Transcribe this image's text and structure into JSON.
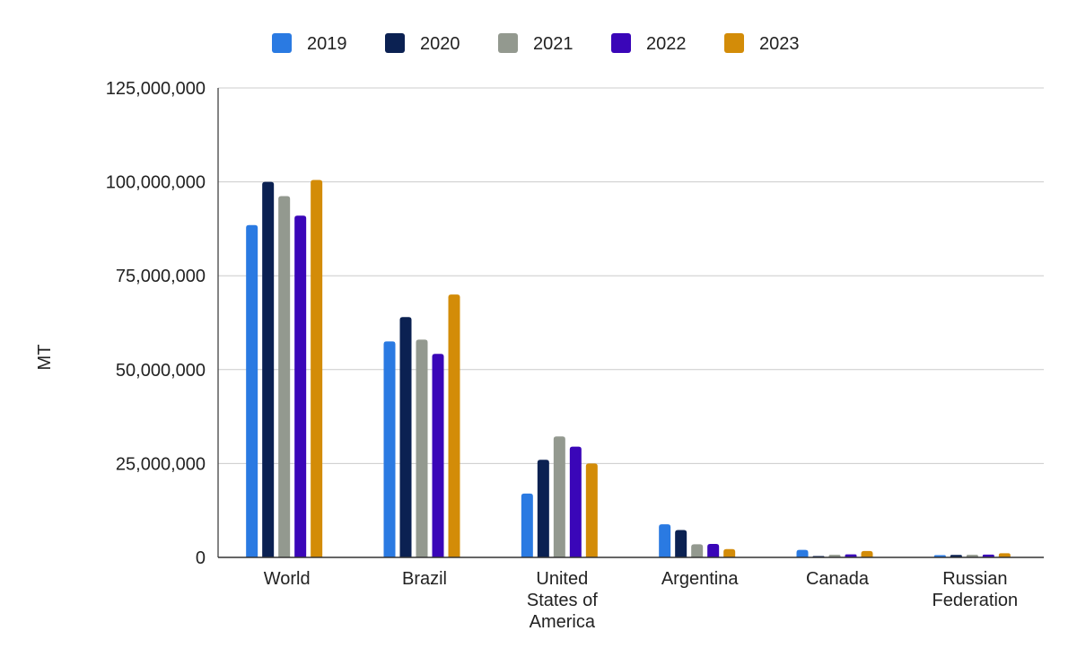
{
  "chart_data": {
    "type": "bar",
    "title": "",
    "xlabel": "",
    "ylabel": "MT",
    "ylim": [
      0,
      125000000
    ],
    "yticks": [
      0,
      25000000,
      50000000,
      75000000,
      100000000,
      125000000
    ],
    "ytick_labels": [
      "0",
      "25,000,000",
      "50,000,000",
      "75,000,000",
      "100,000,000",
      "125,000,000"
    ],
    "grid": true,
    "legend_position": "top",
    "categories": [
      "World",
      "Brazil",
      "United States of America",
      "Argentina",
      "Canada",
      "Russian Federation"
    ],
    "category_lines": [
      [
        "World"
      ],
      [
        "Brazil"
      ],
      [
        "United",
        "States of",
        "America"
      ],
      [
        "Argentina"
      ],
      [
        "Canada"
      ],
      [
        "Russian",
        "Federation"
      ]
    ],
    "series": [
      {
        "name": "2019",
        "color": "#2a7ae2",
        "values": [
          88500000,
          57500000,
          17000000,
          8800000,
          2000000,
          600000
        ]
      },
      {
        "name": "2020",
        "color": "#0b2152",
        "values": [
          100000000,
          64000000,
          26000000,
          7300000,
          300000,
          650000
        ]
      },
      {
        "name": "2021",
        "color": "#93998f",
        "values": [
          96200000,
          58000000,
          32200000,
          3500000,
          700000,
          700000
        ]
      },
      {
        "name": "2022",
        "color": "#3a06b8",
        "values": [
          91000000,
          54200000,
          29500000,
          3600000,
          800000,
          750000
        ]
      },
      {
        "name": "2023",
        "color": "#d38c08",
        "values": [
          100500000,
          70000000,
          25000000,
          2200000,
          1700000,
          1100000
        ]
      }
    ]
  }
}
